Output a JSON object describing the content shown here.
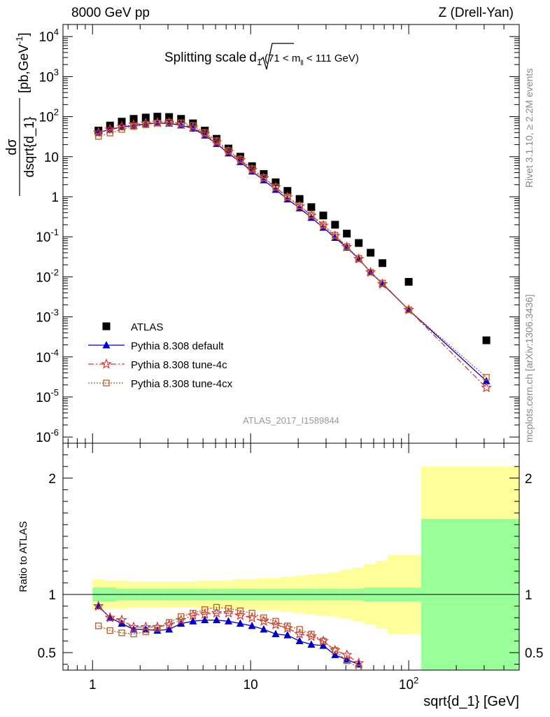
{
  "header": {
    "left": "8000 GeV pp",
    "right": "Z (Drell-Yan)"
  },
  "side": {
    "rivet": "Rivet 3.1.10, ≥ 2.2M events",
    "mcplots": "mcplots.cern.ch [arXiv:1306.3436]"
  },
  "chart_data": [
    {
      "type": "scatter",
      "title_main": "Splitting scale",
      "title_sym": "d",
      "title_sub": "1",
      "title_range": "(71 < m",
      "title_range_sub": "ll",
      "title_range_end": " < 111 GeV)",
      "ylabel_num": "dσ",
      "ylabel_den": "dsqrt{d_1}",
      "ylabel_unit": "[pb,GeV",
      "ylabel_unit_sup": "-1",
      "ylabel_unit_end": "]",
      "yscale": "log",
      "xscale": "log",
      "xlim": [
        0.65,
        500
      ],
      "ylim": [
        7e-07,
        20000.0
      ],
      "ytick_labels": [
        "10^-6",
        "10^-5",
        "10^-4",
        "10^-3",
        "10^-2",
        "10^-1",
        "1",
        "10",
        "10^2",
        "10^3",
        "10^4"
      ],
      "analysis_tag": "ATLAS_2017_I1589844",
      "legend_position": "bottom-left",
      "series": [
        {
          "name": "ATLAS",
          "color": "#000000",
          "marker": "square",
          "x": [
            1.09,
            1.29,
            1.53,
            1.82,
            2.17,
            2.57,
            3.05,
            3.63,
            4.32,
            5.13,
            6.09,
            7.24,
            8.6,
            10.2,
            12.1,
            14.4,
            17.1,
            20.4,
            24.2,
            28.8,
            34.2,
            40.6,
            48.3,
            57.4,
            68.2,
            100,
            310
          ],
          "y": [
            45,
            60,
            75,
            88,
            95,
            100,
            98,
            88,
            68,
            45,
            28,
            16,
            10,
            5.8,
            3.7,
            2.3,
            1.4,
            0.88,
            0.55,
            0.34,
            0.2,
            0.12,
            0.07,
            0.04,
            0.022,
            0.0075,
            0.00026
          ]
        },
        {
          "name": "Pythia 8.308 default",
          "color": "#0000cc",
          "marker": "triangle",
          "line": "solid",
          "x": [
            1.09,
            1.29,
            1.53,
            1.82,
            2.17,
            2.57,
            3.05,
            3.63,
            4.32,
            5.13,
            6.09,
            7.24,
            8.6,
            10.2,
            12.1,
            14.4,
            17.1,
            20.4,
            24.2,
            28.8,
            34.2,
            40.6,
            48.3,
            57.4,
            68.2,
            100,
            310
          ],
          "y": [
            40,
            48,
            55,
            60,
            66,
            69,
            68,
            61,
            51,
            34,
            21,
            12.2,
            7.4,
            4.3,
            2.6,
            1.5,
            0.87,
            0.52,
            0.3,
            0.17,
            0.095,
            0.054,
            0.028,
            0.013,
            0.0068,
            0.0015,
            2.5e-05
          ]
        },
        {
          "name": "Pythia 8.308 tune-4c",
          "color": "#dd3333",
          "marker": "star",
          "line": "dashdot",
          "x": [
            1.09,
            1.29,
            1.53,
            1.82,
            2.17,
            2.57,
            3.05,
            3.63,
            4.32,
            5.13,
            6.09,
            7.24,
            8.6,
            10.2,
            12.1,
            14.4,
            17.1,
            20.4,
            24.2,
            28.8,
            34.2,
            40.6,
            48.3,
            57.4,
            68.2,
            100,
            310
          ],
          "y": [
            40,
            48,
            56,
            63,
            68,
            71,
            71,
            64,
            54,
            37,
            23,
            13.4,
            8.2,
            4.7,
            2.9,
            1.7,
            0.97,
            0.58,
            0.34,
            0.19,
            0.105,
            0.056,
            0.028,
            0.013,
            0.0066,
            0.0015,
            1.7e-05
          ]
        },
        {
          "name": "Pythia 8.308 tune-4cx",
          "color": "#b85c2a",
          "marker": "open-square",
          "line": "dotted",
          "x": [
            1.09,
            1.29,
            1.53,
            1.82,
            2.17,
            2.57,
            3.05,
            3.63,
            4.32,
            5.13,
            6.09,
            7.24,
            8.6,
            10.2,
            12.1,
            14.4,
            17.1,
            20.4,
            24.2,
            28.8,
            34.2,
            40.6,
            48.3,
            57.4,
            68.2,
            100,
            310
          ],
          "y": [
            32,
            39,
            48,
            57,
            63,
            69,
            73,
            70,
            60,
            40,
            25,
            14.2,
            8.7,
            5.0,
            3.0,
            1.75,
            1.0,
            0.6,
            0.35,
            0.2,
            0.11,
            0.057,
            0.029,
            0.013,
            0.007,
            0.0015,
            3.1e-05
          ]
        }
      ]
    },
    {
      "type": "line",
      "ylabel": "Ratio to ATLAS",
      "xlabel": "sqrt{d_1} [GeV]",
      "xscale": "log",
      "xlim": [
        0.65,
        500
      ],
      "ylim": [
        0.35,
        2.3
      ],
      "ytick_labels": [
        "0.5",
        "1",
        "2"
      ],
      "xtick_labels": [
        "1",
        "10",
        "10^2"
      ],
      "band_colors": {
        "inner": "#99ff99",
        "outer": "#ffff99"
      },
      "bands": {
        "x_edges": [
          1.0,
          1.19,
          1.41,
          1.67,
          1.99,
          2.36,
          2.8,
          3.33,
          3.95,
          4.69,
          5.57,
          6.62,
          7.86,
          9.34,
          11.1,
          13.2,
          15.6,
          18.6,
          22.1,
          26.2,
          31.1,
          36.9,
          43.9,
          52.1,
          61.9,
          73.5,
          120,
          500
        ],
        "outer_up": [
          1.13,
          1.12,
          1.12,
          1.11,
          1.11,
          1.11,
          1.11,
          1.11,
          1.11,
          1.12,
          1.12,
          1.12,
          1.13,
          1.13,
          1.14,
          1.14,
          1.15,
          1.16,
          1.17,
          1.18,
          1.19,
          1.21,
          1.23,
          1.26,
          1.29,
          1.34,
          2.1
        ],
        "outer_dn": [
          0.87,
          0.88,
          0.88,
          0.89,
          0.89,
          0.89,
          0.89,
          0.89,
          0.89,
          0.88,
          0.88,
          0.88,
          0.87,
          0.87,
          0.86,
          0.86,
          0.85,
          0.84,
          0.83,
          0.82,
          0.81,
          0.79,
          0.77,
          0.74,
          0.71,
          0.66,
          0.1
        ],
        "inner_up": [
          1.06,
          1.06,
          1.05,
          1.05,
          1.05,
          1.05,
          1.05,
          1.05,
          1.05,
          1.05,
          1.05,
          1.05,
          1.05,
          1.05,
          1.05,
          1.05,
          1.05,
          1.05,
          1.05,
          1.05,
          1.05,
          1.05,
          1.05,
          1.06,
          1.06,
          1.06,
          1.65
        ],
        "inner_dn": [
          0.94,
          0.94,
          0.95,
          0.95,
          0.95,
          0.95,
          0.95,
          0.95,
          0.95,
          0.95,
          0.95,
          0.95,
          0.95,
          0.95,
          0.95,
          0.95,
          0.95,
          0.95,
          0.95,
          0.95,
          0.95,
          0.95,
          0.95,
          0.94,
          0.94,
          0.94,
          0.35
        ]
      },
      "series": [
        {
          "name": "Pythia 8.308 default",
          "color": "#0000cc",
          "marker": "triangle",
          "x": [
            1.09,
            1.29,
            1.53,
            1.82,
            2.17,
            2.57,
            3.05,
            3.63,
            4.32,
            5.13,
            6.09,
            7.24,
            8.6,
            10.2,
            12.1,
            14.4,
            17.1,
            20.4,
            24.2,
            28.8,
            34.2,
            40.6,
            48.3
          ],
          "y": [
            0.9,
            0.8,
            0.75,
            0.7,
            0.7,
            0.69,
            0.7,
            0.75,
            0.77,
            0.78,
            0.78,
            0.77,
            0.75,
            0.73,
            0.7,
            0.66,
            0.65,
            0.6,
            0.57,
            0.56,
            0.48,
            0.44,
            0.4
          ]
        },
        {
          "name": "Pythia 8.308 tune-4c",
          "color": "#dd3333",
          "marker": "star",
          "x": [
            1.09,
            1.29,
            1.53,
            1.82,
            2.17,
            2.57,
            3.05,
            3.63,
            4.32,
            5.13,
            6.09,
            7.24,
            8.6,
            10.2,
            12.1,
            14.4,
            17.1,
            20.4,
            24.2,
            28.8,
            34.2,
            40.6,
            48.3
          ],
          "y": [
            0.9,
            0.8,
            0.78,
            0.72,
            0.72,
            0.72,
            0.74,
            0.78,
            0.82,
            0.83,
            0.84,
            0.84,
            0.82,
            0.8,
            0.77,
            0.74,
            0.71,
            0.66,
            0.64,
            0.6,
            0.52,
            0.48,
            0.41
          ]
        },
        {
          "name": "Pythia 8.308 tune-4cx",
          "color": "#b85c2a",
          "marker": "open-square",
          "x": [
            1.09,
            1.29,
            1.53,
            1.82,
            2.17,
            2.57,
            3.05,
            3.63,
            4.32,
            5.13,
            6.09,
            7.24,
            8.6,
            10.2,
            12.1,
            14.4,
            17.1,
            20.4,
            24.2,
            28.8,
            34.2,
            40.6,
            48.3
          ],
          "y": [
            0.73,
            0.69,
            0.67,
            0.66,
            0.68,
            0.71,
            0.76,
            0.81,
            0.84,
            0.87,
            0.89,
            0.88,
            0.86,
            0.84,
            0.8,
            0.77,
            0.73,
            0.7,
            0.66,
            0.6,
            0.52,
            0.43,
            0.37
          ]
        }
      ]
    }
  ]
}
